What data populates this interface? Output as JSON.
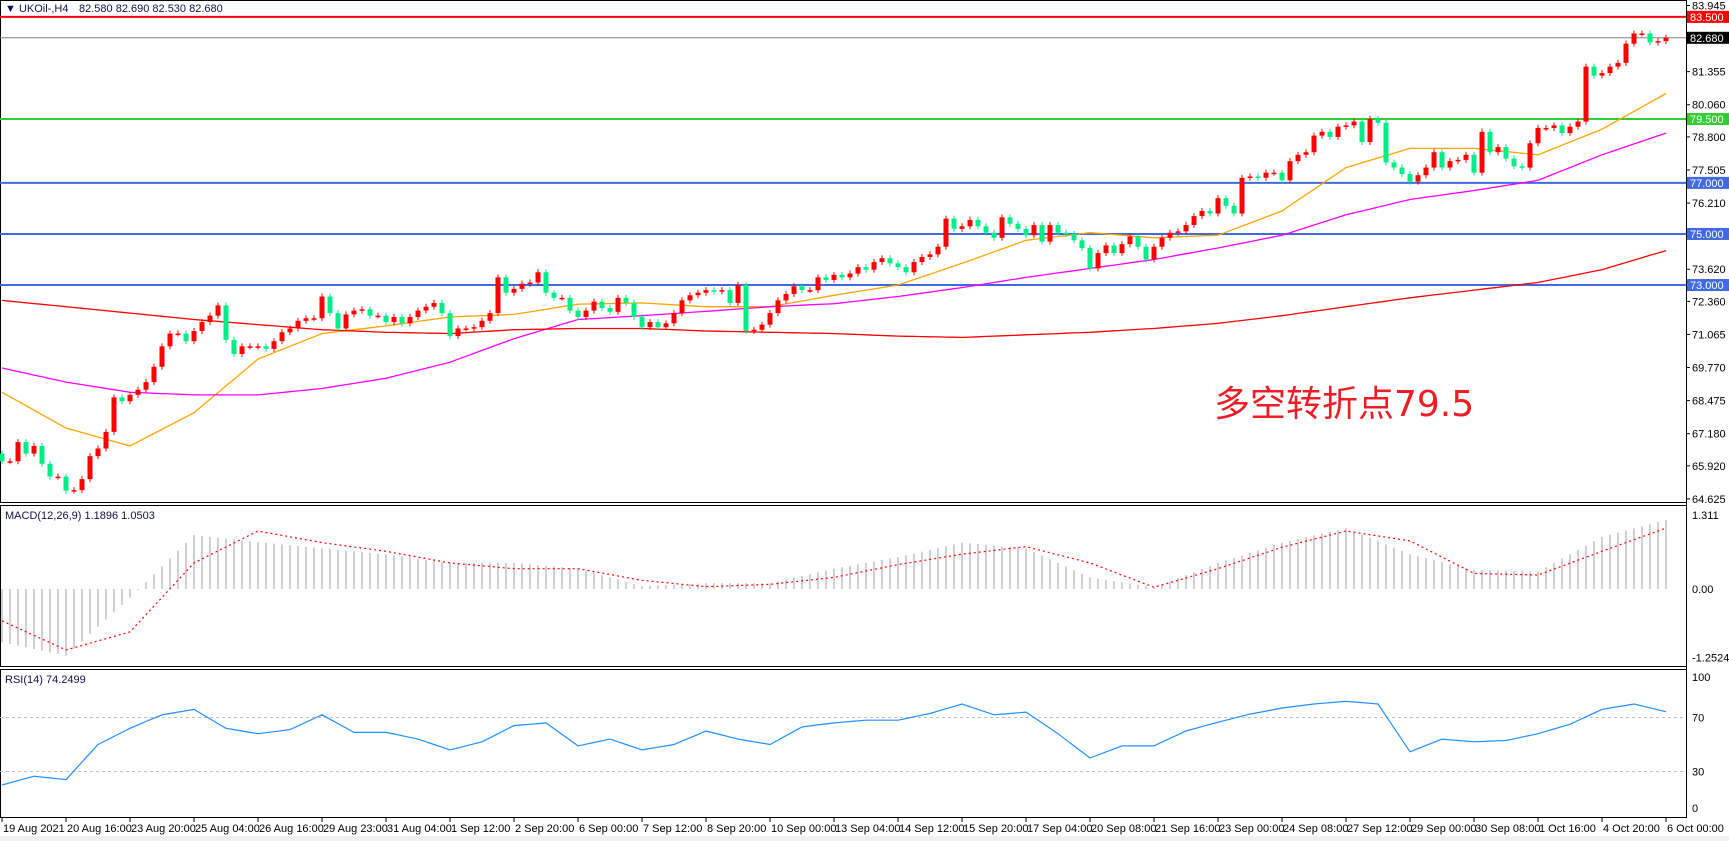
{
  "header": {
    "symbol": "▼ UKOil-,H4",
    "ohlc": "82.580 82.690 82.530 82.680",
    "macd_label": "MACD(12,26,9) 1.1896 1.0503",
    "rsi_label": "RSI(14) 74.2499"
  },
  "annotation": "多空转折点79.5",
  "colors": {
    "bull_candle": "#ff0000",
    "bear_candle": "#00ee88",
    "ma_fast": "#ffa500",
    "ma_mid": "#ff00ff",
    "ma_slow": "#ff0000",
    "macd_hist": "#c0c0c0",
    "macd_signal": "#ff0000",
    "rsi_line": "#1e90ff"
  },
  "chart_data": {
    "type": "candlestick",
    "symbol": "UKOil-",
    "timeframe": "H4",
    "ylim": [
      64.625,
      83.945
    ],
    "price_ticks": [
      "83.945",
      "81.355",
      "80.060",
      "78.800",
      "77.505",
      "76.210",
      "73.620",
      "72.360",
      "71.065",
      "69.770",
      "68.475",
      "67.180",
      "65.920",
      "64.625"
    ],
    "current_price": {
      "value": 82.68,
      "label": "82.680",
      "color": "#808080"
    },
    "levels": [
      {
        "value": 83.5,
        "label": "83.500",
        "color": "#ff0000"
      },
      {
        "value": 79.5,
        "label": "79.500",
        "color": "#32cd32"
      },
      {
        "value": 77.0,
        "label": "77.000",
        "color": "#4169e1"
      },
      {
        "value": 75.0,
        "label": "75.000",
        "color": "#4169e1"
      },
      {
        "value": 73.0,
        "label": "73.000",
        "color": "#4169e1"
      }
    ],
    "first_open": 66.4,
    "closes": [
      66.1,
      66.1,
      66.85,
      66.4,
      66.7,
      66.0,
      65.5,
      65.5,
      64.95,
      64.97,
      65.4,
      66.3,
      66.6,
      67.25,
      68.6,
      68.45,
      68.7,
      68.9,
      69.2,
      69.8,
      70.6,
      71.1,
      71.1,
      70.8,
      71.2,
      71.55,
      71.8,
      72.2,
      70.85,
      70.3,
      70.6,
      70.6,
      70.6,
      70.5,
      70.8,
      71.15,
      71.3,
      71.6,
      71.7,
      71.7,
      72.55,
      71.9,
      71.3,
      71.85,
      72.0,
      72.05,
      71.8,
      71.8,
      71.55,
      71.75,
      71.5,
      71.75,
      72.0,
      72.15,
      72.3,
      71.9,
      71.0,
      71.3,
      71.3,
      71.35,
      71.6,
      71.9,
      73.3,
      72.7,
      72.85,
      73.05,
      73.1,
      73.5,
      72.7,
      72.5,
      72.5,
      72.0,
      71.75,
      72.0,
      72.35,
      72.1,
      71.95,
      72.5,
      72.3,
      71.75,
      71.35,
      71.55,
      71.35,
      71.5,
      71.9,
      72.4,
      72.6,
      72.7,
      72.8,
      72.75,
      72.8,
      72.3,
      73.0,
      71.2,
      71.25,
      71.45,
      71.9,
      72.4,
      72.65,
      72.95,
      72.8,
      72.8,
      73.3,
      73.2,
      73.4,
      73.3,
      73.45,
      73.7,
      73.6,
      73.9,
      74.05,
      73.85,
      73.7,
      73.5,
      73.9,
      74.1,
      74.2,
      74.5,
      75.6,
      75.2,
      75.3,
      75.55,
      75.3,
      75.05,
      74.85,
      75.65,
      75.4,
      75.2,
      74.95,
      75.35,
      74.7,
      75.35,
      75.05,
      75.0,
      74.75,
      74.45,
      73.65,
      74.25,
      74.55,
      74.25,
      74.6,
      74.9,
      74.5,
      74.0,
      74.5,
      74.85,
      75.05,
      75.1,
      75.35,
      75.7,
      75.9,
      75.8,
      76.4,
      76.1,
      75.8,
      77.2,
      77.25,
      77.2,
      77.4,
      77.4,
      77.1,
      77.85,
      78.1,
      78.2,
      78.85,
      79.0,
      78.8,
      79.2,
      79.25,
      79.4,
      78.6,
      79.5,
      79.35,
      77.8,
      77.6,
      77.35,
      77.05,
      77.3,
      77.6,
      78.2,
      77.6,
      77.85,
      77.9,
      78.1,
      77.4,
      79.0,
      78.2,
      78.4,
      77.95,
      77.65,
      77.6,
      78.55,
      79.15,
      79.15,
      79.25,
      78.95,
      79.2,
      79.4,
      81.55,
      81.2,
      81.3,
      81.55,
      81.7,
      82.45,
      82.85,
      82.85,
      82.5,
      82.55,
      82.68
    ],
    "moving_averages": [
      {
        "color": "#ffa500",
        "values": [
          68.8,
          67.4,
          66.7,
          68.0,
          70.1,
          71.1,
          71.4,
          71.75,
          71.85,
          72.25,
          72.3,
          72.15,
          72.15,
          72.6,
          73.0,
          73.85,
          74.75,
          75.05,
          74.85,
          74.95,
          75.9,
          77.6,
          78.35,
          78.35,
          78.1,
          79.1,
          80.5
        ]
      },
      {
        "color": "#ff00ff",
        "values": [
          69.75,
          69.2,
          68.8,
          68.7,
          68.7,
          68.95,
          69.35,
          69.98,
          70.9,
          71.65,
          71.8,
          71.97,
          72.15,
          72.27,
          72.55,
          72.9,
          73.3,
          73.65,
          74.0,
          74.45,
          74.95,
          75.75,
          76.35,
          76.7,
          77.1,
          78.1,
          78.95
        ]
      },
      {
        "color": "#ff0000",
        "values": [
          72.4,
          72.15,
          71.9,
          71.65,
          71.45,
          71.25,
          71.15,
          71.1,
          71.25,
          71.3,
          71.3,
          71.2,
          71.15,
          71.1,
          71.0,
          70.95,
          71.05,
          71.15,
          71.3,
          71.5,
          71.8,
          72.15,
          72.5,
          72.8,
          73.1,
          73.6,
          74.35
        ]
      }
    ],
    "time_labels": [
      "19 Aug 2021",
      "20 Aug 16:00",
      "23 Aug 20:00",
      "25 Aug 04:00",
      "26 Aug 16:00",
      "29 Aug 23:00",
      "31 Aug 04:00",
      "1 Sep 12:00",
      "2 Sep 20:00",
      "6 Sep 00:00",
      "7 Sep 12:00",
      "8 Sep 20:00",
      "10 Sep 00:00",
      "13 Sep 04:00",
      "14 Sep 12:00",
      "15 Sep 20:00",
      "17 Sep 04:00",
      "20 Sep 08:00",
      "21 Sep 16:00",
      "23 Sep 00:00",
      "24 Sep 08:00",
      "27 Sep 12:00",
      "29 Sep 00:00",
      "30 Sep 08:00",
      "1 Oct 16:00",
      "4 Oct 20:00",
      "6 Oct 00:00"
    ],
    "macd": {
      "params": "12,26,9",
      "ylim": [
        -1.2524,
        1.311
      ],
      "ticks": [
        "1.311",
        "0.00",
        "-1.2524"
      ],
      "histogram": [
        -0.92,
        -1.15,
        -0.15,
        0.93,
        0.81,
        0.7,
        0.6,
        0.45,
        0.45,
        0.35,
        0.05,
        0.1,
        0.1,
        0.35,
        0.55,
        0.8,
        0.7,
        0.2,
        0.03,
        0.45,
        0.8,
        1.05,
        0.6,
        0.33,
        0.3,
        0.9,
        1.19
      ],
      "signal": [
        -0.55,
        -1.05,
        -0.74,
        0.45,
        1.0,
        0.8,
        0.65,
        0.45,
        0.35,
        0.35,
        0.15,
        0.04,
        0.08,
        0.2,
        0.42,
        0.6,
        0.73,
        0.45,
        0.03,
        0.35,
        0.72,
        1.0,
        0.83,
        0.27,
        0.24,
        0.65,
        1.05
      ]
    },
    "rsi": {
      "period": 14,
      "ylim": [
        0,
        100
      ],
      "ticks": [
        "100",
        "70",
        "30",
        "0"
      ],
      "levels": [
        70,
        30
      ],
      "values": [
        20,
        26.5,
        24,
        50,
        62,
        72,
        76,
        62,
        58,
        61,
        72,
        59,
        59,
        54,
        46,
        52,
        64,
        66,
        49,
        54,
        46,
        50,
        60,
        54,
        50,
        63,
        66,
        68,
        68,
        73,
        80,
        72,
        74,
        58,
        40,
        49,
        49,
        60,
        66.5,
        72.5,
        77,
        80,
        82,
        80,
        44.6,
        54,
        52,
        53,
        58,
        65,
        76,
        80,
        74.25
      ]
    }
  }
}
